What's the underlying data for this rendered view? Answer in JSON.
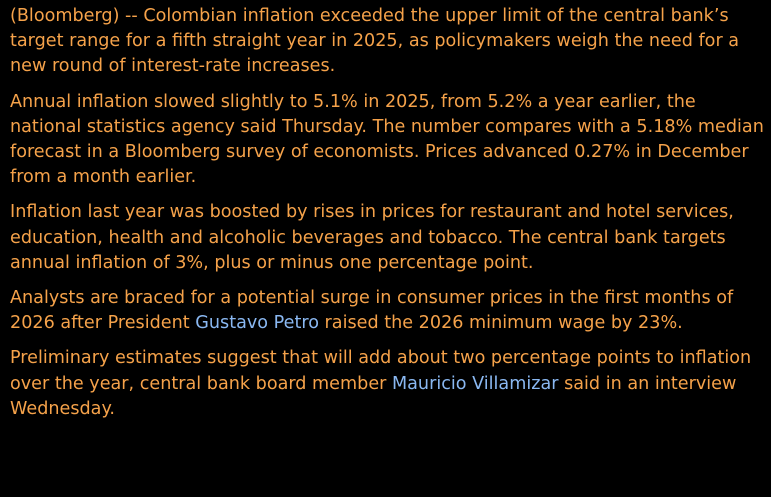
{
  "article": {
    "p1": "(Bloomberg) -- Colombian inflation exceeded the upper limit of the central bank’s target range for a fifth straight year in 2025, as policymakers weigh the need for a new round of interest-rate increases.",
    "p2": "Annual inflation slowed slightly to 5.1% in 2025, from 5.2% a year earlier, the national statistics agency said Thursday. The number compares with a 5.18% median forecast in a Bloomberg survey of economists. Prices advanced 0.27% in December from a month earlier.",
    "p3": "Inflation last year was boosted by rises in prices for restaurant and hotel services, education, health and alcoholic beverages and tobacco. The central bank targets annual inflation of 3%, plus or minus one percentage point.",
    "p4_before": "Analysts are braced for a potential surge in consumer prices in the first months of 2026 after President ",
    "p4_link": "Gustavo Petro",
    "p4_after": " raised the 2026 minimum wage by 23%.",
    "p5_before": "Preliminary estimates suggest that will add about two percentage points to inflation over the year, central bank board member ",
    "p5_link": "Mauricio Villamizar",
    "p5_after": " said in an interview Wednesday."
  },
  "colors": {
    "background": "#000000",
    "body_text": "#f5a24a",
    "link_text": "#8ab8f2"
  }
}
